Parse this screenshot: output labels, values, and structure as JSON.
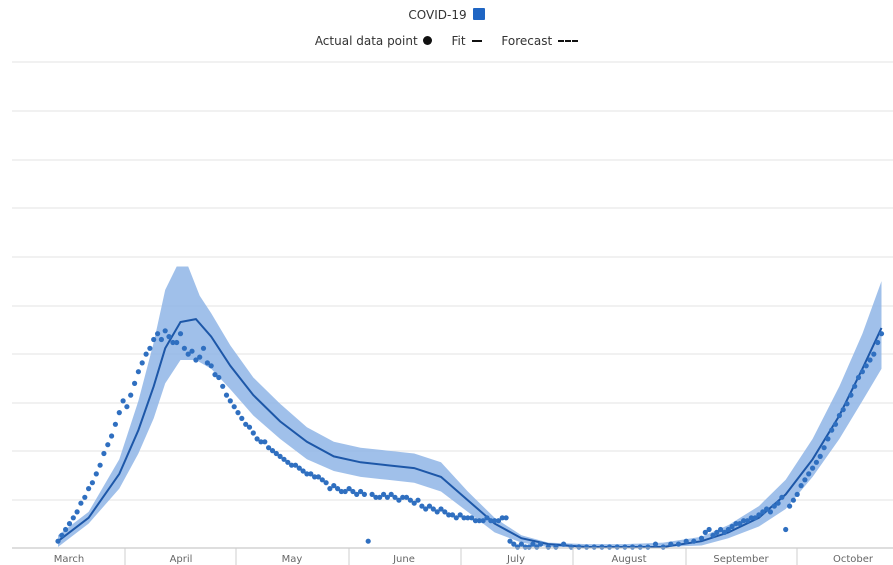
{
  "legend": {
    "series_label": "COVID-19",
    "series_color": "#1f65c3",
    "actual_label": "Actual data point",
    "fit_label": "Fit",
    "forecast_label": "Forecast"
  },
  "chart_data": {
    "type": "line",
    "x_unit": "day",
    "months": [
      "March",
      "April",
      "May",
      "June",
      "July",
      "August",
      "September",
      "October"
    ],
    "grid": true,
    "legend_position": "top-center",
    "colors": {
      "band": "#8fb5e6",
      "fit": "#1d57a8",
      "points": "#2f6fc0"
    },
    "fit": [
      [
        12,
        0.02
      ],
      [
        20,
        0.1
      ],
      [
        28,
        0.25
      ],
      [
        33,
        0.4
      ],
      [
        37,
        0.55
      ],
      [
        40,
        0.68
      ],
      [
        44,
        0.77
      ],
      [
        48,
        0.78
      ],
      [
        52,
        0.72
      ],
      [
        57,
        0.62
      ],
      [
        63,
        0.52
      ],
      [
        70,
        0.43
      ],
      [
        77,
        0.36
      ],
      [
        84,
        0.31
      ],
      [
        91,
        0.29
      ],
      [
        98,
        0.28
      ],
      [
        105,
        0.27
      ],
      [
        112,
        0.24
      ],
      [
        119,
        0.16
      ],
      [
        126,
        0.08
      ],
      [
        133,
        0.03
      ],
      [
        140,
        0.01
      ],
      [
        150,
        0.0
      ],
      [
        160,
        0.0
      ],
      [
        170,
        0.0
      ],
      [
        180,
        0.02
      ],
      [
        187,
        0.05
      ],
      [
        195,
        0.1
      ],
      [
        202,
        0.18
      ],
      [
        209,
        0.3
      ],
      [
        216,
        0.45
      ],
      [
        222,
        0.61
      ],
      [
        227,
        0.75
      ]
    ],
    "band_upper": [
      [
        12,
        0.04
      ],
      [
        20,
        0.12
      ],
      [
        28,
        0.3
      ],
      [
        33,
        0.5
      ],
      [
        37,
        0.7
      ],
      [
        40,
        0.88
      ],
      [
        43,
        0.96
      ],
      [
        46,
        0.96
      ],
      [
        49,
        0.86
      ],
      [
        52,
        0.8
      ],
      [
        57,
        0.69
      ],
      [
        63,
        0.58
      ],
      [
        70,
        0.49
      ],
      [
        77,
        0.41
      ],
      [
        84,
        0.36
      ],
      [
        91,
        0.34
      ],
      [
        98,
        0.33
      ],
      [
        105,
        0.32
      ],
      [
        112,
        0.29
      ],
      [
        119,
        0.19
      ],
      [
        126,
        0.1
      ],
      [
        133,
        0.04
      ],
      [
        140,
        0.015
      ],
      [
        150,
        0.01
      ],
      [
        160,
        0.01
      ],
      [
        170,
        0.015
      ],
      [
        180,
        0.035
      ],
      [
        187,
        0.075
      ],
      [
        195,
        0.14
      ],
      [
        202,
        0.23
      ],
      [
        209,
        0.37
      ],
      [
        216,
        0.55
      ],
      [
        222,
        0.73
      ],
      [
        227,
        0.91
      ]
    ],
    "band_lower": [
      [
        12,
        0.0
      ],
      [
        20,
        0.08
      ],
      [
        28,
        0.2
      ],
      [
        33,
        0.32
      ],
      [
        37,
        0.44
      ],
      [
        40,
        0.56
      ],
      [
        44,
        0.64
      ],
      [
        48,
        0.64
      ],
      [
        52,
        0.61
      ],
      [
        57,
        0.54
      ],
      [
        63,
        0.45
      ],
      [
        70,
        0.37
      ],
      [
        77,
        0.3
      ],
      [
        84,
        0.26
      ],
      [
        91,
        0.24
      ],
      [
        98,
        0.23
      ],
      [
        105,
        0.22
      ],
      [
        112,
        0.19
      ],
      [
        119,
        0.12
      ],
      [
        126,
        0.05
      ],
      [
        133,
        0.015
      ],
      [
        140,
        0.0
      ],
      [
        150,
        0.0
      ],
      [
        160,
        0.0
      ],
      [
        170,
        0.0
      ],
      [
        180,
        0.005
      ],
      [
        187,
        0.03
      ],
      [
        195,
        0.07
      ],
      [
        202,
        0.13
      ],
      [
        209,
        0.24
      ],
      [
        216,
        0.37
      ],
      [
        222,
        0.5
      ],
      [
        227,
        0.61
      ]
    ],
    "points": [
      [
        12,
        0.02
      ],
      [
        13,
        0.04
      ],
      [
        14,
        0.06
      ],
      [
        15,
        0.08
      ],
      [
        16,
        0.1
      ],
      [
        17,
        0.12
      ],
      [
        18,
        0.15
      ],
      [
        19,
        0.17
      ],
      [
        20,
        0.2
      ],
      [
        21,
        0.22
      ],
      [
        22,
        0.25
      ],
      [
        23,
        0.28
      ],
      [
        24,
        0.32
      ],
      [
        25,
        0.35
      ],
      [
        26,
        0.38
      ],
      [
        27,
        0.42
      ],
      [
        28,
        0.46
      ],
      [
        29,
        0.5
      ],
      [
        30,
        0.48
      ],
      [
        31,
        0.52
      ],
      [
        32,
        0.56
      ],
      [
        33,
        0.6
      ],
      [
        34,
        0.63
      ],
      [
        35,
        0.66
      ],
      [
        36,
        0.68
      ],
      [
        37,
        0.71
      ],
      [
        38,
        0.73
      ],
      [
        39,
        0.71
      ],
      [
        40,
        0.74
      ],
      [
        41,
        0.72
      ],
      [
        42,
        0.7
      ],
      [
        43,
        0.7
      ],
      [
        44,
        0.73
      ],
      [
        45,
        0.68
      ],
      [
        46,
        0.66
      ],
      [
        47,
        0.67
      ],
      [
        48,
        0.64
      ],
      [
        49,
        0.65
      ],
      [
        50,
        0.68
      ],
      [
        51,
        0.63
      ],
      [
        52,
        0.62
      ],
      [
        53,
        0.59
      ],
      [
        54,
        0.58
      ],
      [
        55,
        0.55
      ],
      [
        56,
        0.52
      ],
      [
        57,
        0.5
      ],
      [
        58,
        0.48
      ],
      [
        59,
        0.46
      ],
      [
        60,
        0.44
      ],
      [
        61,
        0.42
      ],
      [
        62,
        0.41
      ],
      [
        63,
        0.39
      ],
      [
        64,
        0.37
      ],
      [
        65,
        0.36
      ],
      [
        66,
        0.36
      ],
      [
        67,
        0.34
      ],
      [
        68,
        0.33
      ],
      [
        69,
        0.32
      ],
      [
        70,
        0.31
      ],
      [
        71,
        0.3
      ],
      [
        72,
        0.29
      ],
      [
        73,
        0.28
      ],
      [
        74,
        0.28
      ],
      [
        75,
        0.27
      ],
      [
        76,
        0.26
      ],
      [
        77,
        0.25
      ],
      [
        78,
        0.25
      ],
      [
        79,
        0.24
      ],
      [
        80,
        0.24
      ],
      [
        81,
        0.23
      ],
      [
        82,
        0.22
      ],
      [
        83,
        0.2
      ],
      [
        84,
        0.21
      ],
      [
        85,
        0.2
      ],
      [
        86,
        0.19
      ],
      [
        87,
        0.19
      ],
      [
        88,
        0.2
      ],
      [
        89,
        0.19
      ],
      [
        90,
        0.18
      ],
      [
        91,
        0.19
      ],
      [
        92,
        0.18
      ],
      [
        93,
        0.02
      ],
      [
        94,
        0.18
      ],
      [
        95,
        0.17
      ],
      [
        96,
        0.17
      ],
      [
        97,
        0.18
      ],
      [
        98,
        0.17
      ],
      [
        99,
        0.18
      ],
      [
        100,
        0.17
      ],
      [
        101,
        0.16
      ],
      [
        102,
        0.17
      ],
      [
        103,
        0.17
      ],
      [
        104,
        0.16
      ],
      [
        105,
        0.15
      ],
      [
        106,
        0.16
      ],
      [
        107,
        0.14
      ],
      [
        108,
        0.13
      ],
      [
        109,
        0.14
      ],
      [
        110,
        0.13
      ],
      [
        111,
        0.12
      ],
      [
        112,
        0.13
      ],
      [
        113,
        0.12
      ],
      [
        114,
        0.11
      ],
      [
        115,
        0.11
      ],
      [
        116,
        0.1
      ],
      [
        117,
        0.11
      ],
      [
        118,
        0.1
      ],
      [
        119,
        0.1
      ],
      [
        120,
        0.1
      ],
      [
        121,
        0.09
      ],
      [
        122,
        0.09
      ],
      [
        123,
        0.09
      ],
      [
        124,
        0.1
      ],
      [
        125,
        0.09
      ],
      [
        126,
        0.09
      ],
      [
        127,
        0.09
      ],
      [
        128,
        0.1
      ],
      [
        129,
        0.1
      ],
      [
        130,
        0.02
      ],
      [
        131,
        0.01
      ],
      [
        132,
        0.0
      ],
      [
        133,
        0.01
      ],
      [
        134,
        0.0
      ],
      [
        135,
        0.0
      ],
      [
        136,
        0.01
      ],
      [
        137,
        0.0
      ],
      [
        138,
        0.01
      ],
      [
        140,
        0.0
      ],
      [
        142,
        0.0
      ],
      [
        144,
        0.01
      ],
      [
        146,
        0.0
      ],
      [
        148,
        0.0
      ],
      [
        150,
        0.0
      ],
      [
        152,
        0.0
      ],
      [
        154,
        0.0
      ],
      [
        156,
        0.0
      ],
      [
        158,
        0.0
      ],
      [
        160,
        0.0
      ],
      [
        162,
        0.0
      ],
      [
        164,
        0.0
      ],
      [
        166,
        0.0
      ],
      [
        168,
        0.01
      ],
      [
        170,
        0.0
      ],
      [
        172,
        0.01
      ],
      [
        174,
        0.01
      ],
      [
        176,
        0.02
      ],
      [
        178,
        0.02
      ],
      [
        180,
        0.03
      ],
      [
        181,
        0.05
      ],
      [
        182,
        0.06
      ],
      [
        183,
        0.04
      ],
      [
        184,
        0.05
      ],
      [
        185,
        0.06
      ],
      [
        186,
        0.05
      ],
      [
        187,
        0.06
      ],
      [
        188,
        0.07
      ],
      [
        189,
        0.08
      ],
      [
        190,
        0.08
      ],
      [
        191,
        0.09
      ],
      [
        192,
        0.09
      ],
      [
        193,
        0.1
      ],
      [
        194,
        0.1
      ],
      [
        195,
        0.11
      ],
      [
        196,
        0.12
      ],
      [
        197,
        0.13
      ],
      [
        198,
        0.12
      ],
      [
        199,
        0.14
      ],
      [
        200,
        0.15
      ],
      [
        201,
        0.17
      ],
      [
        202,
        0.06
      ],
      [
        203,
        0.14
      ],
      [
        204,
        0.16
      ],
      [
        205,
        0.18
      ],
      [
        206,
        0.21
      ],
      [
        207,
        0.23
      ],
      [
        208,
        0.25
      ],
      [
        209,
        0.27
      ],
      [
        210,
        0.29
      ],
      [
        211,
        0.31
      ],
      [
        212,
        0.34
      ],
      [
        213,
        0.37
      ],
      [
        214,
        0.4
      ],
      [
        215,
        0.42
      ],
      [
        216,
        0.45
      ],
      [
        217,
        0.47
      ],
      [
        218,
        0.49
      ],
      [
        219,
        0.52
      ],
      [
        220,
        0.55
      ],
      [
        221,
        0.58
      ],
      [
        222,
        0.6
      ],
      [
        223,
        0.62
      ],
      [
        224,
        0.64
      ],
      [
        225,
        0.66
      ],
      [
        226,
        0.7
      ],
      [
        227,
        0.73
      ]
    ]
  }
}
